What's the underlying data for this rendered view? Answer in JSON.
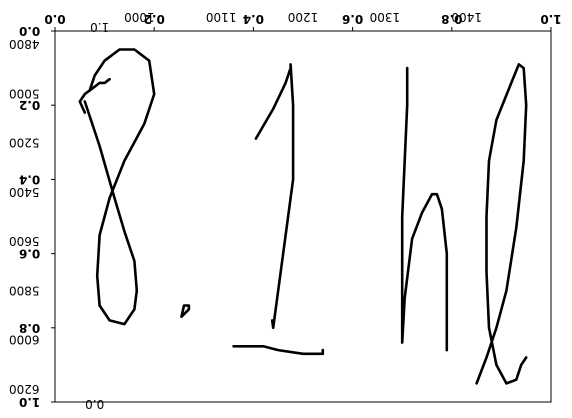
{
  "chart_data": [
    {
      "type": "line",
      "layer": "ink-overlay",
      "title": "",
      "xlabel": "",
      "ylabel": "",
      "grid": false,
      "legend": "none",
      "ink_color": "#000000",
      "x_ticks_top": [
        "0.0",
        "0.2",
        "0.4",
        "0.6",
        "0.8",
        "1.0"
      ],
      "y_ticks_left": [
        "0.0",
        "0.2",
        "0.4",
        "0.6",
        "0.8",
        "1.0"
      ],
      "xlim": [
        0,
        1
      ],
      "ylim": [
        0,
        1
      ],
      "strokes": [
        {
          "name": "",
          "points": [
            [
              0.06,
              0.22
            ],
            [
              0.05,
              0.19
            ],
            [
              0.06,
              0.17
            ],
            [
              0.08,
              0.15
            ],
            [
              0.09,
              0.14
            ],
            [
              0.1,
              0.14
            ],
            [
              0.11,
              0.13
            ]
          ]
        },
        {
          "name": "",
          "points": [
            [
              0.06,
              0.19
            ],
            [
              0.09,
              0.31
            ],
            [
              0.12,
              0.45
            ],
            [
              0.14,
              0.54
            ],
            [
              0.16,
              0.62
            ],
            [
              0.165,
              0.7
            ],
            [
              0.16,
              0.75
            ],
            [
              0.14,
              0.79
            ],
            [
              0.11,
              0.78
            ],
            [
              0.09,
              0.74
            ],
            [
              0.085,
              0.66
            ],
            [
              0.09,
              0.55
            ],
            [
              0.11,
              0.45
            ],
            [
              0.14,
              0.35
            ],
            [
              0.18,
              0.25
            ],
            [
              0.2,
              0.17
            ],
            [
              0.19,
              0.08
            ],
            [
              0.16,
              0.05
            ],
            [
              0.13,
              0.05
            ],
            [
              0.1,
              0.08
            ],
            [
              0.08,
              0.12
            ],
            [
              0.07,
              0.16
            ]
          ]
        },
        {
          "name": "",
          "points": [
            [
              0.255,
              0.77
            ],
            [
              0.26,
              0.74
            ],
            [
              0.27,
              0.74
            ],
            [
              0.27,
              0.75
            ],
            [
              0.255,
              0.77
            ]
          ]
        },
        {
          "name": "",
          "points": [
            [
              0.405,
              0.29
            ],
            [
              0.44,
              0.21
            ],
            [
              0.465,
              0.14
            ],
            [
              0.475,
              0.1
            ],
            [
              0.475,
              0.09
            ],
            [
              0.48,
              0.2
            ],
            [
              0.48,
              0.4
            ],
            [
              0.44,
              0.8
            ],
            [
              0.438,
              0.78
            ]
          ]
        },
        {
          "name": "",
          "points": [
            [
              0.36,
              0.85
            ],
            [
              0.38,
              0.85
            ],
            [
              0.42,
              0.85
            ],
            [
              0.45,
              0.86
            ],
            [
              0.5,
              0.87
            ],
            [
              0.54,
              0.87
            ],
            [
              0.54,
              0.86
            ]
          ]
        },
        {
          "name": "",
          "points": [
            [
              0.71,
              0.1
            ],
            [
              0.71,
              0.2
            ],
            [
              0.7,
              0.5
            ],
            [
              0.7,
              0.75
            ],
            [
              0.7,
              0.84
            ],
            [
              0.705,
              0.72
            ],
            [
              0.72,
              0.56
            ],
            [
              0.74,
              0.49
            ],
            [
              0.76,
              0.44
            ],
            [
              0.77,
              0.44
            ],
            [
              0.78,
              0.48
            ],
            [
              0.79,
              0.6
            ],
            [
              0.79,
              0.75
            ],
            [
              0.79,
              0.86
            ]
          ]
        },
        {
          "name": "",
          "points": [
            [
              0.85,
              0.95
            ],
            [
              0.87,
              0.88
            ],
            [
              0.89,
              0.8
            ],
            [
              0.91,
              0.7
            ],
            [
              0.93,
              0.53
            ],
            [
              0.945,
              0.35
            ],
            [
              0.95,
              0.2
            ],
            [
              0.945,
              0.1
            ],
            [
              0.935,
              0.09
            ],
            [
              0.92,
              0.14
            ],
            [
              0.89,
              0.24
            ],
            [
              0.875,
              0.35
            ],
            [
              0.87,
              0.5
            ],
            [
              0.87,
              0.65
            ],
            [
              0.875,
              0.8
            ],
            [
              0.89,
              0.9
            ],
            [
              0.91,
              0.95
            ],
            [
              0.93,
              0.94
            ],
            [
              0.94,
              0.9
            ],
            [
              0.95,
              0.88
            ]
          ]
        }
      ]
    },
    {
      "type": "line",
      "layer": "mirrored-axes",
      "title": "",
      "xlabel": "",
      "ylabel": "",
      "x_ticks_top": [
        "1000",
        "1100",
        "1200",
        "1300",
        "1400"
      ],
      "y_ticks_left": [
        "4800",
        "5000",
        "5200",
        "5400",
        "5600",
        "5800",
        "6000",
        "6200"
      ],
      "x_extra_labels": [
        "1.0"
      ],
      "bottom_labels": [
        "0.0"
      ]
    }
  ]
}
